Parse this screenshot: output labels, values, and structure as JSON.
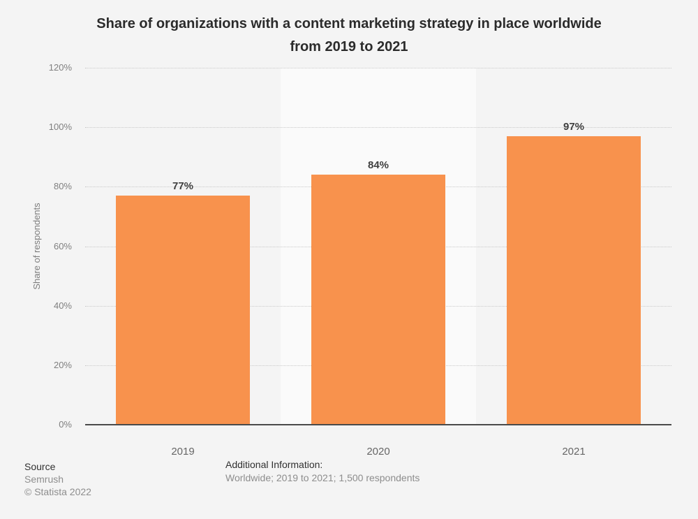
{
  "title_lines": [
    "Share of organizations with a content marketing strategy in place worldwide",
    "from 2019 to 2021"
  ],
  "footer": {
    "source_label": "Source",
    "source_name": "Semrush",
    "copyright": "© Statista 2022",
    "additional_info_label": "Additional Information:",
    "additional_info": "Worldwide; 2019 to 2021; 1,500 respondents"
  },
  "chart_data": {
    "type": "bar",
    "title": "Share of organizations with a content marketing strategy in place worldwide from 2019 to 2021",
    "categories": [
      "2019",
      "2020",
      "2021"
    ],
    "values": [
      77,
      84,
      97
    ],
    "value_labels": [
      "77%",
      "84%",
      "97%"
    ],
    "xlabel": "",
    "ylabel": "Share of respondents",
    "ylim": [
      0,
      120
    ],
    "ytick_step": 20,
    "ytick_suffix": "%",
    "grid": "horizontal dotted",
    "legend": "none",
    "colors": {
      "bar": "#f8924d",
      "page_background": "#f4f4f4",
      "highlight_band": "#fafafa",
      "gridline": "#c9c9c9",
      "axis_line": "#4a4a4a"
    },
    "band_colors": [
      "transparent",
      "#fafafa",
      "transparent"
    ]
  }
}
